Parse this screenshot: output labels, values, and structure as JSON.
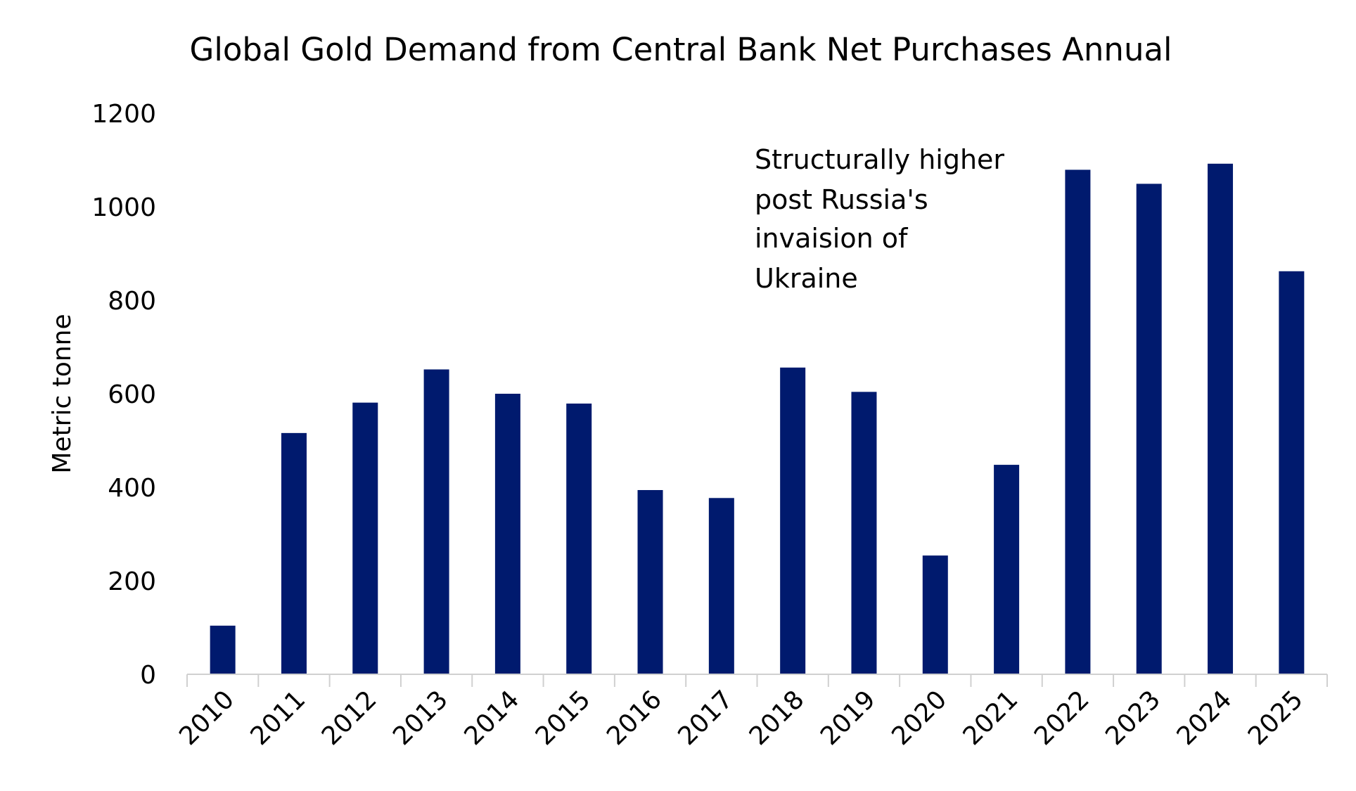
{
  "chart_data": {
    "type": "bar",
    "title": "Global Gold Demand from Central Bank Net Purchases Annual",
    "xlabel": "",
    "ylabel": "Metric tonne",
    "ylim": [
      0,
      1200
    ],
    "yticks": [
      "0",
      "200",
      "400",
      "600",
      "800",
      "1000",
      "1200"
    ],
    "grid": false,
    "categories": [
      "2010",
      "2011",
      "2012",
      "2013",
      "2014",
      "2015",
      "2016",
      "2017",
      "2018",
      "2019",
      "2020",
      "2021",
      "2022",
      "2023",
      "2024",
      "2025"
    ],
    "values": [
      104,
      516,
      581,
      652,
      600,
      579,
      394,
      377,
      656,
      604,
      254,
      448,
      1079,
      1049,
      1092,
      862
    ],
    "bar_color": "#001a6e",
    "annotation": [
      "Structurally higher",
      "post Russia's",
      "invaision of",
      "Ukraine"
    ]
  }
}
